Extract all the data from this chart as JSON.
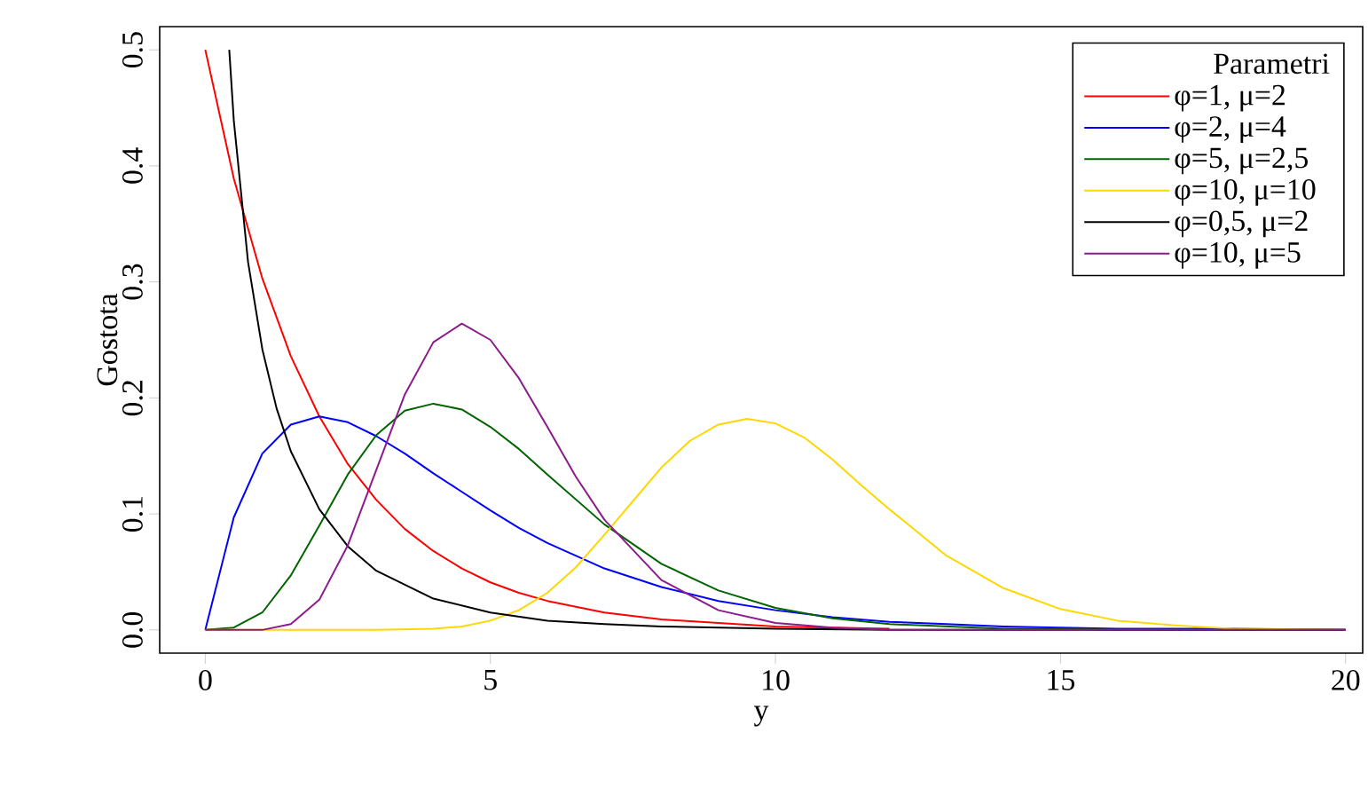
{
  "chart_data": {
    "type": "line",
    "xlabel": "y",
    "ylabel": "Gostota",
    "legend_title": "Parametri",
    "legend": "top right",
    "marker": "none",
    "line_style": "solid",
    "xlim": [
      -0.8,
      20.3
    ],
    "ylim": [
      -0.02,
      0.52
    ],
    "xticks": [
      0,
      5,
      10,
      15,
      20
    ],
    "yticks": [
      {
        "value": 0,
        "label": "0.0"
      },
      {
        "value": 0.1,
        "label": "0.1"
      },
      {
        "value": 0.2,
        "label": "0.2"
      },
      {
        "value": 0.3,
        "label": "0.3"
      },
      {
        "value": 0.4,
        "label": "0.4"
      },
      {
        "value": 0.5,
        "label": "0.5"
      }
    ],
    "series": [
      {
        "name": "φ=1, μ=2",
        "color": "#ff0000",
        "x": [
          0,
          0.5,
          1,
          1.5,
          2,
          2.5,
          3,
          3.5,
          4,
          4.5,
          5,
          5.5,
          6,
          7,
          8,
          9,
          10,
          11,
          12
        ],
        "values": [
          0.5,
          0.389,
          0.303,
          0.236,
          0.184,
          0.143,
          0.112,
          0.087,
          0.068,
          0.053,
          0.041,
          0.032,
          0.025,
          0.015,
          0.009,
          0.006,
          0.003,
          0.002,
          0.001
        ]
      },
      {
        "name": "φ=2, μ=4",
        "color": "#0000ff",
        "x": [
          0,
          0.5,
          1,
          1.5,
          2,
          2.5,
          3,
          3.5,
          4,
          4.5,
          5,
          5.5,
          6,
          7,
          8,
          9,
          10,
          11,
          12,
          13,
          14,
          15,
          16,
          18,
          20
        ],
        "values": [
          0,
          0.097,
          0.152,
          0.177,
          0.184,
          0.179,
          0.167,
          0.152,
          0.135,
          0.119,
          0.103,
          0.088,
          0.075,
          0.053,
          0.037,
          0.025,
          0.017,
          0.011,
          0.007,
          0.005,
          0.003,
          0.002,
          0.001,
          0.001,
          0
        ]
      },
      {
        "name": "φ=5, μ=2,5",
        "color": "#006400",
        "x": [
          0,
          0.5,
          1,
          1.5,
          2,
          2.5,
          3,
          3.5,
          4,
          4.5,
          5,
          5.5,
          6,
          7,
          8,
          9,
          10,
          11,
          12,
          13,
          14,
          15,
          16,
          18,
          20
        ],
        "values": [
          0,
          0.002,
          0.015,
          0.047,
          0.09,
          0.134,
          0.168,
          0.189,
          0.195,
          0.19,
          0.175,
          0.156,
          0.134,
          0.091,
          0.057,
          0.034,
          0.019,
          0.01,
          0.005,
          0.003,
          0.001,
          0.001,
          0,
          0,
          0
        ]
      },
      {
        "name": "φ=10, μ=10",
        "color": "#ffd700",
        "x": [
          0,
          3,
          4,
          4.5,
          5,
          5.5,
          6,
          6.5,
          7,
          7.5,
          8,
          8.5,
          9,
          9.5,
          10,
          10.5,
          11,
          11.5,
          12,
          13,
          14,
          15,
          16,
          17,
          18,
          20
        ],
        "values": [
          0,
          0,
          0.001,
          0.003,
          0.008,
          0.017,
          0.032,
          0.054,
          0.082,
          0.111,
          0.14,
          0.163,
          0.177,
          0.182,
          0.178,
          0.166,
          0.147,
          0.125,
          0.104,
          0.064,
          0.036,
          0.018,
          0.008,
          0.004,
          0.001,
          0
        ]
      },
      {
        "name": "φ=0,5, μ=2",
        "color": "#000000",
        "x": [
          0.42,
          0.5,
          0.75,
          1,
          1.25,
          1.5,
          2,
          2.5,
          3,
          4,
          5,
          6,
          7,
          8,
          10,
          12,
          15,
          20
        ],
        "values": [
          0.5,
          0.439,
          0.317,
          0.242,
          0.191,
          0.154,
          0.104,
          0.072,
          0.051,
          0.027,
          0.015,
          0.008,
          0.005,
          0.003,
          0.001,
          0,
          0,
          0
        ]
      },
      {
        "name": "φ=10, μ=5",
        "color": "#8b1a8b",
        "x": [
          0,
          0.5,
          1,
          1.5,
          2,
          2.5,
          3,
          3.5,
          4,
          4.5,
          5,
          5.5,
          6,
          6.5,
          7,
          8,
          9,
          10,
          11,
          12,
          14,
          20
        ],
        "values": [
          0,
          0,
          0,
          0.005,
          0.026,
          0.073,
          0.138,
          0.203,
          0.248,
          0.264,
          0.25,
          0.217,
          0.175,
          0.132,
          0.095,
          0.043,
          0.017,
          0.006,
          0.002,
          0,
          0,
          0
        ]
      }
    ]
  }
}
